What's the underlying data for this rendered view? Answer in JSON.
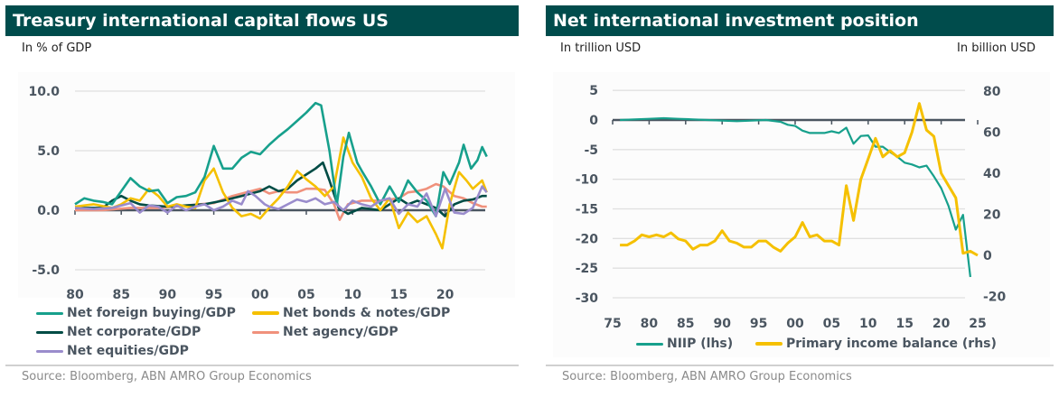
{
  "colors": {
    "title_bg": "#004c4c",
    "teal": "#17a08c",
    "yellow": "#f5c000",
    "darkgreen": "#004c45",
    "salmon": "#f0917c",
    "purple": "#9a8ccc",
    "axis": "#4a5560",
    "grid": "#e0e0e0"
  },
  "left": {
    "title": "Treasury international capital flows US",
    "unit": "In % of GDP",
    "source": "Source: Bloomberg, ABN AMRO Group Economics"
  },
  "right": {
    "title": "Net international investment position",
    "unit_left": "In trillion USD",
    "unit_right": "In billion USD",
    "source": "Source: Bloomberg, ABN AMRO Group Economics"
  },
  "chart_data": [
    {
      "type": "line",
      "title": "Treasury international capital flows US",
      "ylabel": "In % of GDP",
      "xlim": [
        1980,
        2024.5
      ],
      "ylim": [
        -5,
        10
      ],
      "yticks": [
        "10.0",
        "5.0",
        "0.0",
        "-5.0"
      ],
      "ytick_values": [
        10,
        5,
        0,
        -5
      ],
      "xticks": [
        "80",
        "85",
        "90",
        "95",
        "00",
        "05",
        "10",
        "15",
        "20"
      ],
      "xtick_values": [
        1980,
        1985,
        1990,
        1995,
        2000,
        2005,
        2010,
        2015,
        2020
      ],
      "grid": true,
      "legend_position": "bottom",
      "series": [
        {
          "name": "Net foreign buying/GDP",
          "color_key": "teal",
          "x": [
            1980,
            1981,
            1982,
            1983,
            1984,
            1985,
            1986,
            1987,
            1988,
            1989,
            1990,
            1991,
            1992,
            1993,
            1994,
            1995,
            1996,
            1997,
            1998,
            1999,
            2000,
            2001,
            2002,
            2003,
            2004,
            2005,
            2006,
            2006.6,
            2007.5,
            2008.3,
            2009,
            2009.6,
            2010.5,
            2011,
            2012,
            2013,
            2014,
            2015,
            2016,
            2017,
            2018,
            2019,
            2019.8,
            2020.5,
            2021.5,
            2022,
            2022.8,
            2023.5,
            2024,
            2024.5
          ],
          "y": [
            0.5,
            1.0,
            0.8,
            0.7,
            0.5,
            1.6,
            2.7,
            2.0,
            1.6,
            1.7,
            0.6,
            1.1,
            1.2,
            1.5,
            2.8,
            5.4,
            3.5,
            3.5,
            4.4,
            4.9,
            4.7,
            5.5,
            6.2,
            6.8,
            7.5,
            8.2,
            9.0,
            8.8,
            5.0,
            0.5,
            4.5,
            6.5,
            4.0,
            3.3,
            2.0,
            0.5,
            2.0,
            0.7,
            2.5,
            1.5,
            0.8,
            -0.5,
            3.2,
            2.2,
            4.0,
            5.5,
            3.5,
            4.2,
            5.3,
            4.5
          ]
        },
        {
          "name": "Net bonds & notes/GDP",
          "color_key": "yellow",
          "x": [
            1980,
            1982,
            1984,
            1985,
            1986,
            1987,
            1988,
            1989,
            1990,
            1991,
            1992,
            1993,
            1994,
            1995,
            1996,
            1997,
            1998,
            1999,
            2000,
            2001,
            2002,
            2003,
            2004,
            2005,
            2006,
            2007,
            2008,
            2009,
            2010,
            2011,
            2012,
            2013,
            2014,
            2015,
            2016,
            2017,
            2018,
            2019,
            2019.7,
            2020.5,
            2021.5,
            2022.3,
            2023,
            2024,
            2024.5
          ],
          "y": [
            0.3,
            0.5,
            0.2,
            0.5,
            1.0,
            0.8,
            1.8,
            1.2,
            0.3,
            0.5,
            0.3,
            0.2,
            2.5,
            3.5,
            1.5,
            0.2,
            -0.5,
            -0.3,
            -0.7,
            0.2,
            1.0,
            2.0,
            3.3,
            2.6,
            2.0,
            1.2,
            2.0,
            6.1,
            4.0,
            2.8,
            1.0,
            0.0,
            1.0,
            -1.5,
            -0.2,
            -1.0,
            -0.5,
            -2.0,
            -3.2,
            0.5,
            3.2,
            2.5,
            1.8,
            2.5,
            1.5
          ]
        },
        {
          "name": "Net corporate/GDP",
          "color_key": "darkgreen",
          "x": [
            1980,
            1983,
            1984,
            1985,
            1986,
            1987,
            1988,
            1990,
            1992,
            1994,
            1996,
            1998,
            2000,
            2001,
            2002,
            2003,
            2004,
            2005,
            2006,
            2006.8,
            2007.5,
            2008.5,
            2009.5,
            2011,
            2013,
            2015,
            2016,
            2017,
            2018,
            2019,
            2020,
            2021,
            2022,
            2023,
            2024,
            2024.5
          ],
          "y": [
            0.2,
            0.2,
            0.8,
            1.2,
            0.8,
            0.5,
            0.4,
            0.3,
            0.4,
            0.5,
            0.8,
            1.2,
            1.6,
            2.0,
            1.6,
            1.8,
            2.5,
            3.0,
            3.5,
            4.0,
            2.5,
            0.2,
            -0.3,
            0.2,
            0.0,
            1.0,
            0.5,
            0.8,
            0.5,
            0.2,
            -0.5,
            0.5,
            0.8,
            0.9,
            1.2,
            1.2
          ]
        },
        {
          "name": "Net agency/GDP",
          "color_key": "salmon",
          "x": [
            1980,
            1983,
            1986,
            1989,
            1992,
            1995,
            1997,
            1999,
            2000,
            2001,
            2002,
            2003,
            2004,
            2005,
            2006,
            2007,
            2008,
            2008.6,
            2009.5,
            2011,
            2013,
            2015,
            2016,
            2017,
            2018,
            2019,
            2019.8,
            2021,
            2022,
            2023,
            2024,
            2024.5
          ],
          "y": [
            0.0,
            0.0,
            0.2,
            0.2,
            0.4,
            0.6,
            1.2,
            1.6,
            1.8,
            1.4,
            1.6,
            1.5,
            1.5,
            1.8,
            1.8,
            1.7,
            0.5,
            -0.8,
            0.5,
            0.8,
            0.8,
            1.0,
            1.5,
            1.6,
            1.8,
            2.2,
            2.0,
            1.2,
            1.0,
            0.6,
            0.3,
            0.3
          ]
        },
        {
          "name": "Net equities/GDP",
          "color_key": "purple",
          "x": [
            1980,
            1982,
            1984,
            1986,
            1987,
            1988,
            1989,
            1990,
            1991,
            1992,
            1993,
            1994,
            1995,
            1996,
            1997,
            1998,
            1998.7,
            1999.5,
            2000.5,
            2001,
            2002,
            2003,
            2004,
            2005,
            2006,
            2007,
            2008,
            2009,
            2010,
            2011,
            2012,
            2013,
            2014,
            2015,
            2016,
            2017,
            2018,
            2019,
            2020,
            2021,
            2022,
            2023,
            2024,
            2024.5
          ],
          "y": [
            0.2,
            0.1,
            0.2,
            0.6,
            -0.2,
            0.4,
            0.3,
            -0.2,
            0.4,
            0.0,
            0.3,
            0.5,
            0.0,
            0.3,
            0.8,
            0.5,
            1.6,
            1.2,
            0.5,
            0.3,
            0.1,
            0.5,
            0.9,
            0.7,
            1.0,
            0.5,
            0.7,
            0.0,
            0.8,
            0.5,
            0.3,
            0.8,
            1.0,
            -0.3,
            0.5,
            0.3,
            1.4,
            -0.5,
            1.8,
            -0.2,
            -0.3,
            0.2,
            2.0,
            1.5
          ]
        }
      ]
    },
    {
      "type": "line",
      "title": "Net international investment position",
      "ylabel_left": "In trillion USD",
      "ylabel_right": "In billion USD",
      "xlim": [
        1975,
        2026.5
      ],
      "ylim_left": [
        -30,
        5
      ],
      "ylim_right": [
        -20,
        80
      ],
      "yticks_left": [
        "5",
        "0",
        "-5",
        "-10",
        "-15",
        "-20",
        "-25",
        "-30"
      ],
      "ytick_values_left": [
        5,
        0,
        -5,
        -10,
        -15,
        -20,
        -25,
        -30
      ],
      "yticks_right": [
        "80",
        "60",
        "40",
        "20",
        "0",
        "-20"
      ],
      "ytick_values_right": [
        80,
        60,
        40,
        20,
        0,
        -20
      ],
      "xticks": [
        "75",
        "80",
        "85",
        "90",
        "95",
        "00",
        "05",
        "10",
        "15",
        "20",
        "25"
      ],
      "xtick_values": [
        1975,
        1980,
        1985,
        1990,
        1995,
        2000,
        2005,
        2010,
        2015,
        2020,
        2025
      ],
      "grid": true,
      "legend_position": "bottom",
      "series": [
        {
          "name": "NIIP (lhs)",
          "axis": "left",
          "color_key": "teal",
          "x": [
            1976,
            1978,
            1980,
            1982,
            1984,
            1986,
            1988,
            1990,
            1992,
            1994,
            1996,
            1998,
            1999,
            2000,
            2001,
            2002,
            2003,
            2004,
            2005,
            2006,
            2007,
            2008,
            2009,
            2010,
            2011,
            2012,
            2013,
            2014,
            2015,
            2016,
            2017,
            2018,
            2019,
            2020,
            2021,
            2022,
            2023,
            2024
          ],
          "y": [
            0.0,
            0.1,
            0.2,
            0.3,
            0.2,
            0.1,
            0.0,
            -0.1,
            -0.2,
            -0.1,
            0.0,
            -0.3,
            -0.8,
            -1.0,
            -1.8,
            -2.2,
            -2.2,
            -2.2,
            -1.9,
            -2.2,
            -1.3,
            -4.0,
            -2.7,
            -2.6,
            -4.5,
            -4.5,
            -5.4,
            -6.2,
            -7.2,
            -7.5,
            -8.0,
            -7.7,
            -9.5,
            -11.5,
            -14.5,
            -18.5,
            -16.0,
            -26.5
          ]
        },
        {
          "name": "Primary income balance (rhs)",
          "axis": "right",
          "color_key": "yellow",
          "x": [
            1976,
            1977,
            1978,
            1979,
            1980,
            1981,
            1982,
            1983,
            1984,
            1985,
            1986,
            1987,
            1988,
            1989,
            1990,
            1991,
            1992,
            1993,
            1994,
            1995,
            1996,
            1997,
            1998,
            1999,
            2000,
            2001,
            2002,
            2003,
            2004,
            2005,
            2006,
            2007,
            2008,
            2009,
            2010,
            2011,
            2012,
            2013,
            2014,
            2015,
            2016,
            2017,
            2018,
            2019,
            2020,
            2021,
            2022,
            2023,
            2024,
            2025
          ],
          "y": [
            5,
            5,
            7,
            10,
            9,
            10,
            9,
            11,
            8,
            7,
            3,
            5,
            5,
            7,
            12,
            7,
            6,
            4,
            4,
            7,
            7,
            4,
            2,
            6,
            9,
            16,
            9,
            10,
            7,
            7,
            5,
            34,
            17,
            37,
            47,
            57,
            48,
            51,
            48,
            50,
            60,
            74,
            61,
            58,
            40,
            34,
            28,
            1,
            2,
            0
          ]
        }
      ]
    }
  ],
  "legends": {
    "left": [
      "Net foreign buying/GDP",
      "Net bonds & notes/GDP",
      "Net corporate/GDP",
      "Net agency/GDP",
      "Net equities/GDP"
    ],
    "right": [
      "NIIP (lhs)",
      "Primary income balance (rhs)"
    ]
  }
}
